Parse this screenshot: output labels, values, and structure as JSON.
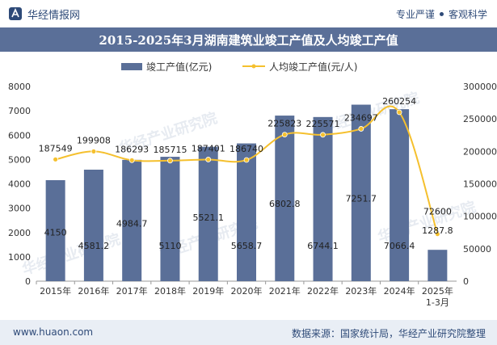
{
  "header": {
    "brand": "华经情报网",
    "tag1": "专业严谨",
    "tag2": "客观科学"
  },
  "title": "2015-2025年3月湖南建筑业竣工产值及人均竣工产值",
  "footer": {
    "site": "www.huaon.com",
    "source": "数据来源：国家统计局，华经产业研究院整理"
  },
  "watermark": "华经产业研究院",
  "colors": {
    "bar": "#5a6f98",
    "line": "#f5c02e",
    "title_bg": "#5a6f98",
    "footer_bg": "#e9eef5"
  },
  "chart_data": {
    "type": "bar+line",
    "categories": [
      "2015年",
      "2016年",
      "2017年",
      "2018年",
      "2019年",
      "2020年",
      "2021年",
      "2022年",
      "2023年",
      "2024年",
      "2025年\n1-3月"
    ],
    "series": [
      {
        "name": "竣工产值(亿元)",
        "type": "bar",
        "axis": "left",
        "values": [
          4150,
          4581.2,
          4984.7,
          5110,
          5521.1,
          5658.7,
          6802.8,
          6744.1,
          7251.7,
          7066.4,
          1287.8
        ]
      },
      {
        "name": "人均竣工产值(元/人)",
        "type": "line",
        "axis": "right",
        "values": [
          187549,
          199908,
          186293,
          185715,
          187401,
          186740,
          225823,
          225571,
          234697,
          260254,
          72600
        ]
      }
    ],
    "left_axis": {
      "ylim": [
        0,
        8000
      ],
      "ticks": [
        0,
        1000,
        2000,
        3000,
        4000,
        5000,
        6000,
        7000,
        8000
      ]
    },
    "right_axis": {
      "ylim": [
        0,
        300000
      ],
      "ticks": [
        0,
        50000,
        100000,
        150000,
        200000,
        250000,
        300000
      ]
    },
    "legend_position": "top-center",
    "grid": false
  }
}
